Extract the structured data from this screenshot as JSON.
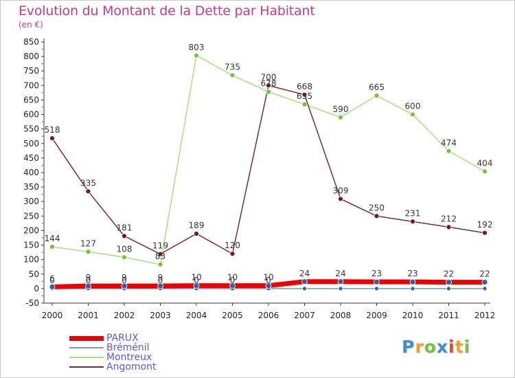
{
  "title": "Evolution du Montant de la Dette par Habitant",
  "unit_label": "(en €)",
  "logo": {
    "text": "Proxiti",
    "letters": [
      {
        "ch": "P",
        "color": "#3a8fd8"
      },
      {
        "ch": "r",
        "color": "#f2a12c"
      },
      {
        "ch": "o",
        "color": "#79c043"
      },
      {
        "ch": "x",
        "color": "#3a8fd8"
      },
      {
        "ch": "i",
        "color": "#e4452e"
      },
      {
        "ch": "t",
        "color": "#f2a12c"
      },
      {
        "ch": "i",
        "color": "#79c043"
      }
    ]
  },
  "chart_data": {
    "type": "line",
    "x": [
      2000,
      2001,
      2002,
      2003,
      2004,
      2005,
      2006,
      2007,
      2008,
      2009,
      2010,
      2011,
      2012
    ],
    "x_tick_labels": [
      "2000",
      "2001",
      "2002",
      "2003",
      "2004",
      "2005",
      "2006",
      "2007",
      "2008",
      "2009",
      "2010",
      "2011",
      "2012"
    ],
    "ylim": [
      -50,
      850
    ],
    "y_ticks": [
      -50,
      0,
      50,
      100,
      150,
      200,
      250,
      300,
      350,
      400,
      450,
      500,
      550,
      600,
      650,
      700,
      750,
      800,
      850
    ],
    "grid": false,
    "series": [
      {
        "name": "PARUX",
        "color": "#ee0000",
        "marker": "#2f5fa8",
        "values": [
          6,
          9,
          9,
          9,
          10,
          10,
          10,
          24,
          24,
          23,
          23,
          22,
          22
        ],
        "labels": [
          "6",
          "9",
          "9",
          "9",
          "10",
          "10",
          "10",
          "24",
          "24",
          "23",
          "23",
          "22",
          "22"
        ]
      },
      {
        "name": "Bréménil",
        "color": "#6c9bc4",
        "marker": "#2f5fa8",
        "values": [
          0,
          0,
          0,
          0,
          0,
          0,
          0,
          0,
          0,
          0,
          0,
          0,
          0
        ],
        "labels": [
          "0",
          "0",
          "0",
          "0",
          "0",
          "0",
          "0",
          "",
          "",
          "",
          "",
          "",
          ""
        ]
      },
      {
        "name": "Montreux",
        "color": "#a9dd7e",
        "marker": "#78c13d",
        "values": [
          144,
          127,
          108,
          83,
          803,
          735,
          678,
          635,
          590,
          665,
          600,
          474,
          404
        ],
        "labels": [
          "144",
          "127",
          "108",
          "83",
          "803",
          "735",
          "678",
          "635",
          "590",
          "665",
          "600",
          "474",
          "404"
        ]
      },
      {
        "name": "Angomont",
        "color": "#7a2a30",
        "marker": "#6e1a1f",
        "values": [
          518,
          335,
          181,
          119,
          189,
          120,
          700,
          668,
          309,
          250,
          231,
          212,
          192
        ],
        "labels": [
          "518",
          "335",
          "181",
          "119",
          "189",
          "120",
          "700",
          "668",
          "309",
          "250",
          "231",
          "212",
          "192"
        ]
      }
    ]
  }
}
